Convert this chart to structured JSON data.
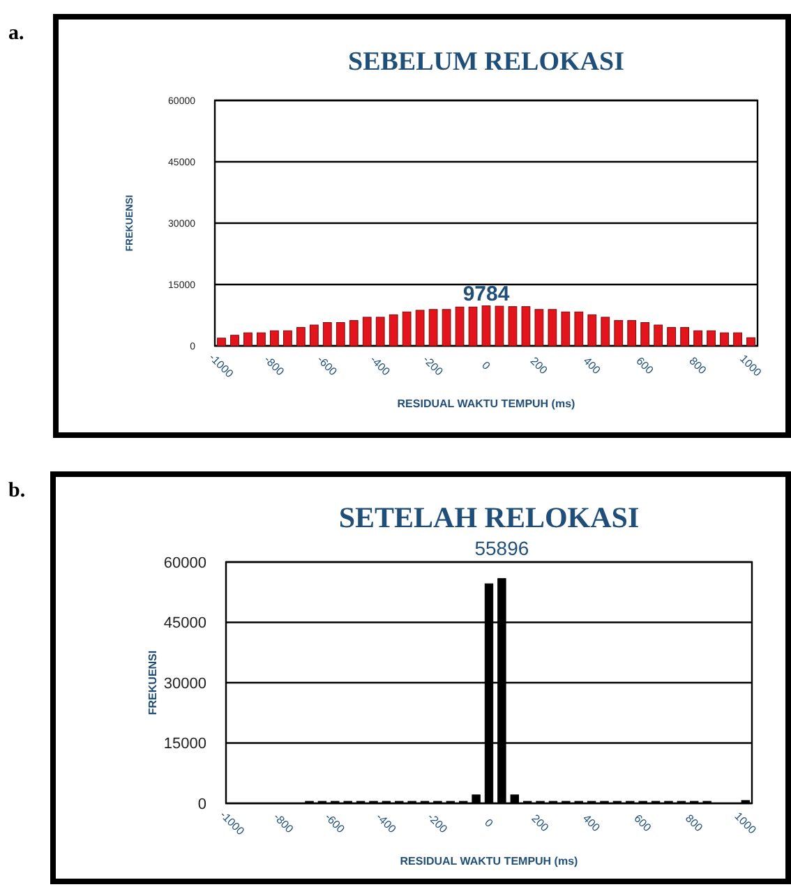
{
  "chart_data": [
    {
      "type": "histogram",
      "title": "SEBELUM  RELOKASI",
      "xlabel": "RESIDUAL WAKTU TEMPUH (ms)",
      "ylabel": "FREKUENSI",
      "annotations": [
        "a."
      ],
      "bins": [
        -1025,
        -975,
        -925,
        -875,
        -825,
        -775,
        -725,
        -675,
        -625,
        -575,
        -525,
        -475,
        -425,
        -375,
        -325,
        -275,
        -225,
        -175,
        -125,
        -75,
        -25,
        25,
        75,
        125,
        175,
        225,
        275,
        325,
        375,
        425,
        475,
        525,
        575,
        625,
        675,
        725,
        775,
        825,
        875,
        925,
        975,
        1025
      ],
      "values": [
        1900,
        2600,
        3200,
        3200,
        3700,
        3700,
        4500,
        5100,
        5700,
        5700,
        6200,
        7000,
        7000,
        7600,
        8300,
        8700,
        8900,
        8900,
        9500,
        9500,
        9784,
        9700,
        9600,
        9600,
        8900,
        8900,
        8300,
        8300,
        7600,
        7000,
        6200,
        6200,
        5700,
        5100,
        4500,
        4500,
        3700,
        3700,
        3200,
        3200,
        2000
      ],
      "value_labels": [
        null,
        null,
        null,
        null,
        null,
        null,
        null,
        null,
        null,
        null,
        null,
        null,
        null,
        null,
        null,
        null,
        null,
        null,
        null,
        null,
        "9784",
        null,
        null,
        null,
        null,
        null,
        null,
        null,
        null,
        null,
        null,
        null,
        null,
        null,
        null,
        null,
        null,
        null,
        null,
        null,
        null
      ],
      "color": "#e3141b",
      "xlim": [
        -1025,
        1025
      ],
      "xticks": [
        -1000,
        -800,
        -600,
        -400,
        -200,
        0,
        200,
        400,
        600,
        800,
        1000
      ],
      "ylim": [
        0,
        60000
      ],
      "yticks": [
        0,
        15000,
        30000,
        45000,
        60000
      ],
      "grid": "y"
    },
    {
      "type": "histogram",
      "title": "SETELAH  RELOKASI",
      "xlabel": "RESIDUAL WAKTU TEMPUH (ms)",
      "ylabel": "FREKUENSI",
      "annotations": [
        "b."
      ],
      "bins": [
        -1025,
        -975,
        -925,
        -875,
        -825,
        -775,
        -725,
        -675,
        -625,
        -575,
        -525,
        -475,
        -425,
        -375,
        -325,
        -275,
        -225,
        -175,
        -125,
        -75,
        -25,
        25,
        75,
        125,
        175,
        225,
        275,
        325,
        375,
        425,
        475,
        525,
        575,
        625,
        675,
        725,
        775,
        825,
        875,
        925,
        975,
        1025
      ],
      "values": [
        0,
        0,
        0,
        0,
        0,
        0,
        500,
        500,
        500,
        500,
        500,
        500,
        500,
        500,
        500,
        500,
        500,
        500,
        500,
        2100,
        54600,
        55896,
        2100,
        500,
        500,
        500,
        500,
        500,
        500,
        500,
        500,
        500,
        500,
        500,
        500,
        500,
        500,
        500,
        0,
        0,
        700
      ],
      "value_labels": [
        null,
        null,
        null,
        null,
        null,
        null,
        null,
        null,
        null,
        null,
        null,
        null,
        null,
        null,
        null,
        null,
        null,
        null,
        null,
        null,
        null,
        "55896",
        null,
        null,
        null,
        null,
        null,
        null,
        null,
        null,
        null,
        null,
        null,
        null,
        null,
        null,
        null,
        null,
        null,
        null,
        null
      ],
      "color": "#000000",
      "xlim": [
        -1025,
        1025
      ],
      "xticks": [
        -1000,
        -800,
        -600,
        -400,
        -200,
        0,
        200,
        400,
        600,
        800,
        1000
      ],
      "ylim": [
        0,
        60000
      ],
      "yticks": [
        0,
        15000,
        30000,
        45000,
        60000
      ],
      "grid": "y"
    }
  ]
}
